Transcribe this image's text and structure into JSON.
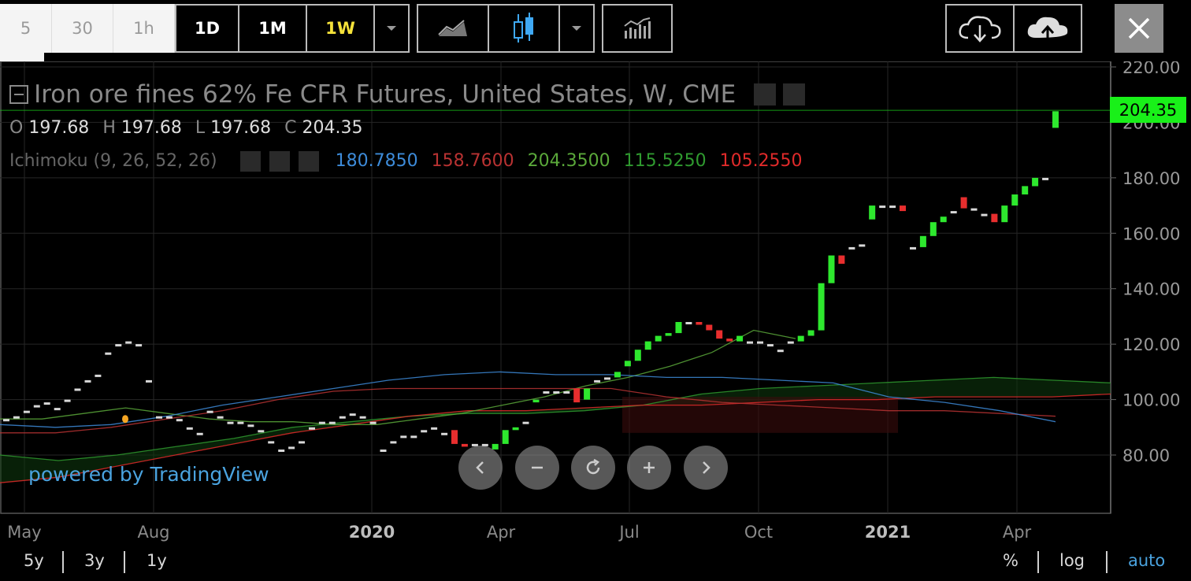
{
  "toolbar": {
    "timeframes": [
      "5",
      "30",
      "1h",
      "1D",
      "1M",
      "1W"
    ],
    "active_timeframe": "1W"
  },
  "header": {
    "title": "Iron ore fines 62% Fe CFR Futures, United States, W, CME",
    "ohlc": [
      {
        "label": "O",
        "value": "197.68"
      },
      {
        "label": "H",
        "value": "197.68"
      },
      {
        "label": "L",
        "value": "197.68"
      },
      {
        "label": "C",
        "value": "204.35"
      }
    ],
    "indicator": {
      "name": "Ichimoku (9, 26, 52, 26)",
      "values": [
        {
          "value": "180.7850",
          "color": "#3d8bd9"
        },
        {
          "value": "158.7600",
          "color": "#b83232"
        },
        {
          "value": "204.3500",
          "color": "#5aa83a"
        },
        {
          "value": "115.5250",
          "color": "#2f9a2f"
        },
        {
          "value": "105.2550",
          "color": "#e02a2a"
        }
      ]
    }
  },
  "watermark": "powered by TradingView",
  "price_tag": "204.35",
  "colors": {
    "up": "#2ee82e",
    "down": "#e82e2e",
    "tag_bg": "#19f019"
  },
  "chart_data": {
    "type": "candlestick",
    "y_ticks": [
      "220.00",
      "200.00",
      "180.00",
      "160.00",
      "140.00",
      "120.00",
      "100.00",
      "80.00"
    ],
    "x_labels": [
      {
        "label": "May",
        "bold": false
      },
      {
        "label": "Aug",
        "bold": false
      },
      {
        "label": "2020",
        "bold": true
      },
      {
        "label": "Apr",
        "bold": false
      },
      {
        "label": "Jul",
        "bold": false
      },
      {
        "label": "Oct",
        "bold": false
      },
      {
        "label": "2021",
        "bold": true
      },
      {
        "label": "Apr",
        "bold": false
      }
    ],
    "ylim": [
      60,
      220
    ],
    "last_price": 204.35,
    "candles": [
      [
        93,
        93
      ],
      [
        94,
        94
      ],
      [
        96,
        96
      ],
      [
        98,
        98
      ],
      [
        99,
        99
      ],
      [
        97,
        97
      ],
      [
        100,
        100
      ],
      [
        104,
        104
      ],
      [
        107,
        107
      ],
      [
        109,
        109
      ],
      [
        117,
        117
      ],
      [
        120,
        120
      ],
      [
        121,
        121
      ],
      [
        120,
        120
      ],
      [
        107,
        107
      ],
      [
        94,
        94
      ],
      [
        94,
        94
      ],
      [
        93,
        93
      ],
      [
        90,
        90
      ],
      [
        88,
        88
      ],
      [
        96,
        96
      ],
      [
        94,
        94
      ],
      [
        92,
        92
      ],
      [
        92,
        92
      ],
      [
        91,
        91
      ],
      [
        89,
        89
      ],
      [
        85,
        85
      ],
      [
        82,
        82
      ],
      [
        83,
        83
      ],
      [
        85,
        85
      ],
      [
        90,
        90
      ],
      [
        92,
        92
      ],
      [
        92,
        92
      ],
      [
        94,
        94
      ],
      [
        95,
        95
      ],
      [
        94,
        94
      ],
      [
        92,
        92
      ],
      [
        82,
        82
      ],
      [
        85,
        85
      ],
      [
        87,
        87
      ],
      [
        87,
        87
      ],
      [
        89,
        89
      ],
      [
        90,
        90
      ],
      [
        88,
        88
      ],
      [
        89,
        84
      ],
      [
        84,
        83
      ],
      [
        84,
        84
      ],
      [
        84,
        84
      ],
      [
        82,
        84
      ],
      [
        84,
        89
      ],
      [
        89,
        90
      ],
      [
        92,
        92
      ],
      [
        99,
        100
      ],
      [
        103,
        103
      ],
      [
        103,
        103
      ],
      [
        103,
        103
      ],
      [
        104,
        99
      ],
      [
        100,
        104
      ],
      [
        107,
        107
      ],
      [
        108,
        108
      ],
      [
        108,
        110
      ],
      [
        112,
        114
      ],
      [
        114,
        118
      ],
      [
        118,
        121
      ],
      [
        121,
        123
      ],
      [
        123,
        124
      ],
      [
        124,
        128
      ],
      [
        128,
        128
      ],
      [
        128,
        127
      ],
      [
        127,
        125
      ],
      [
        125,
        122
      ],
      [
        122,
        121
      ],
      [
        121,
        123
      ],
      [
        121,
        121
      ],
      [
        121,
        121
      ],
      [
        120,
        120
      ],
      [
        118,
        118
      ],
      [
        121,
        121
      ],
      [
        121,
        123
      ],
      [
        123,
        125
      ],
      [
        125,
        142
      ],
      [
        142,
        152
      ],
      [
        152,
        149
      ],
      [
        155,
        155
      ],
      [
        156,
        156
      ],
      [
        165,
        170
      ],
      [
        170,
        170
      ],
      [
        170,
        170
      ],
      [
        170,
        168
      ],
      [
        155,
        155
      ],
      [
        155,
        159
      ],
      [
        159,
        164
      ],
      [
        164,
        166
      ],
      [
        168,
        168
      ],
      [
        173,
        169
      ],
      [
        169,
        169
      ],
      [
        167,
        167
      ],
      [
        167,
        164
      ],
      [
        164,
        170
      ],
      [
        170,
        174
      ],
      [
        174,
        177
      ],
      [
        177,
        180
      ],
      [
        180,
        180
      ],
      [
        198,
        204
      ]
    ],
    "series": [
      {
        "name": "180.7850",
        "color": "#3d8bd9",
        "values": [
          91,
          90,
          91,
          94,
          98,
          101,
          104,
          107,
          109,
          110,
          109,
          109,
          108,
          108,
          107,
          106,
          101,
          99,
          96,
          92
        ]
      },
      {
        "name": "158.7600",
        "color": "#b83232",
        "values": [
          88,
          88,
          90,
          93,
          96,
          100,
          103,
          104,
          104,
          104,
          104,
          104,
          101,
          99,
          98,
          97,
          96,
          96,
          95,
          94
        ]
      },
      {
        "name": "204.3500",
        "color": "#5aa83a",
        "values": [
          93,
          93,
          95,
          97,
          95,
          93,
          92,
          92,
          91,
          91,
          93,
          95,
          98,
          101,
          105,
          108,
          112,
          117,
          125,
          122
        ]
      },
      {
        "name": "115.5250",
        "color": "#2f9a2f",
        "values": [
          80,
          78,
          80,
          83,
          86,
          90,
          92,
          94,
          95,
          95,
          96,
          98,
          102,
          104,
          105,
          106,
          107,
          108,
          107,
          106
        ]
      },
      {
        "name": "105.2550",
        "color": "#e02a2a",
        "values": [
          70,
          72,
          76,
          80,
          84,
          88,
          91,
          94,
          96,
          96,
          97,
          98,
          98,
          99,
          100,
          100,
          101,
          101,
          101,
          102
        ]
      }
    ]
  },
  "bottom_bar": {
    "ranges": [
      "5y",
      "3y",
      "1y"
    ],
    "options": [
      "%",
      "log",
      "auto"
    ]
  }
}
